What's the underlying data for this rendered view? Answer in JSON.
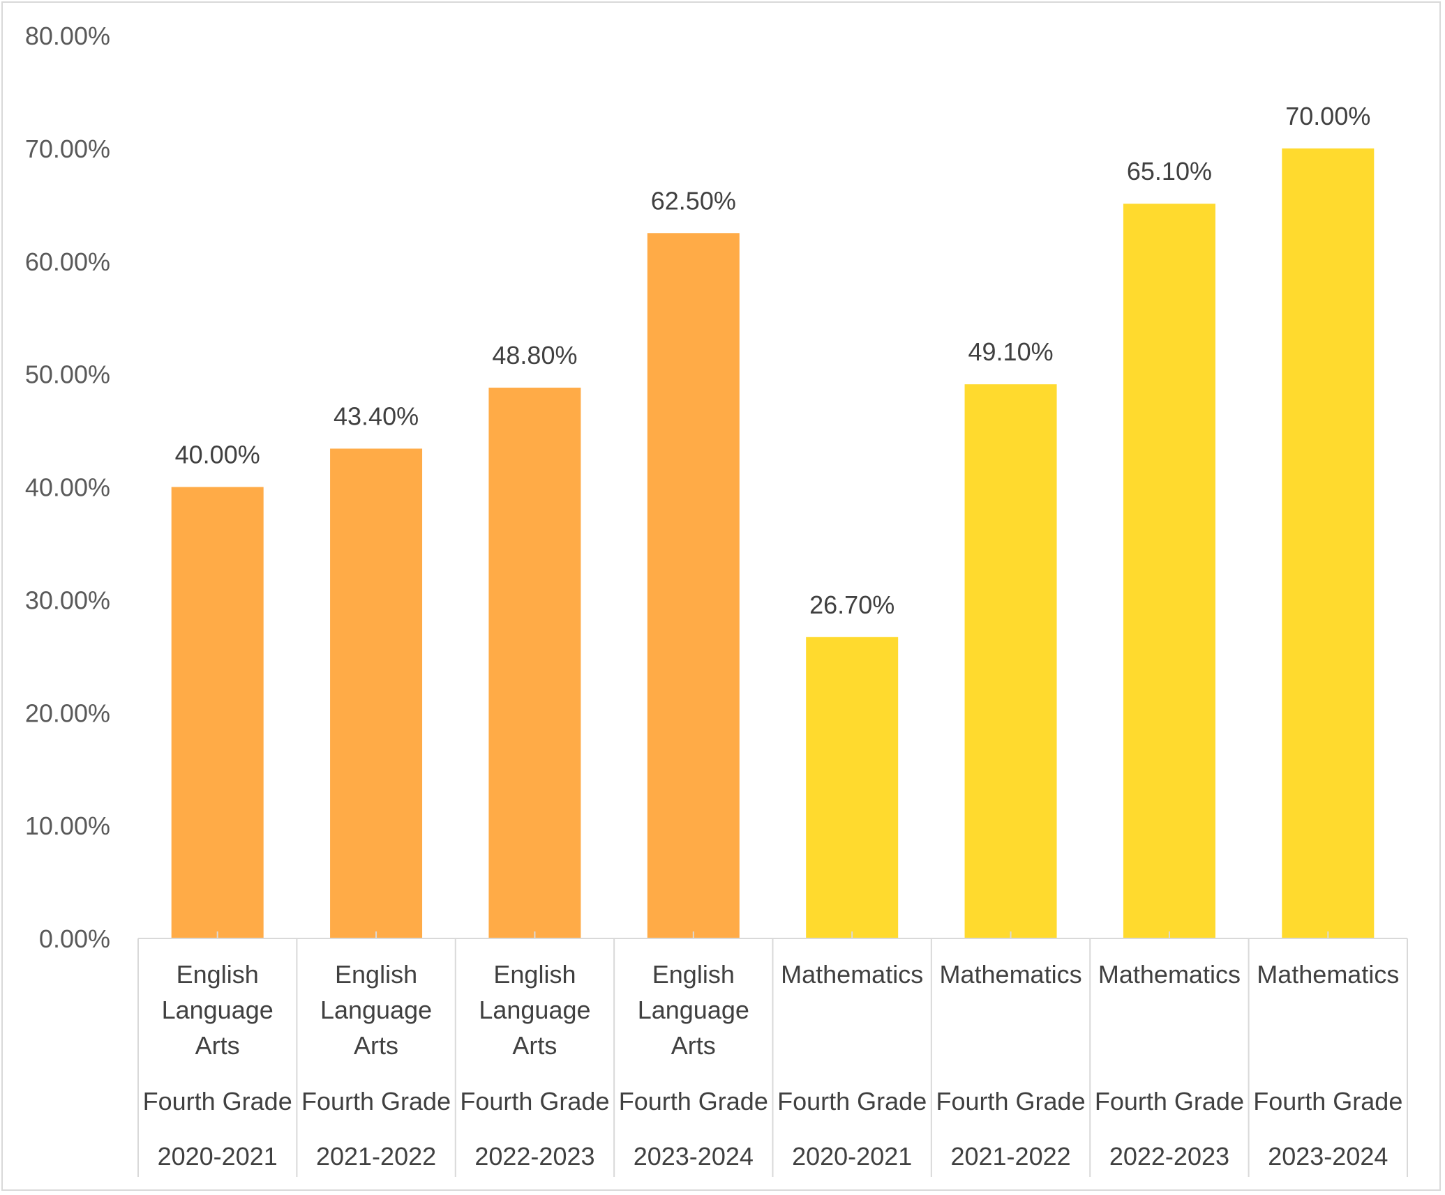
{
  "chart_data": {
    "type": "bar",
    "title": "",
    "xlabel": "",
    "ylabel": "",
    "ylim": [
      0,
      0.8
    ],
    "yticks": [
      "0.00%",
      "10.00%",
      "20.00%",
      "30.00%",
      "40.00%",
      "50.00%",
      "60.00%",
      "70.00%",
      "80.00%"
    ],
    "grid": false,
    "legend": "none",
    "categories": [
      {
        "subject": [
          "English",
          "Language",
          "Arts"
        ],
        "grade": "Fourth Grade",
        "year": "2020-2021"
      },
      {
        "subject": [
          "English",
          "Language",
          "Arts"
        ],
        "grade": "Fourth Grade",
        "year": "2021-2022"
      },
      {
        "subject": [
          "English",
          "Language",
          "Arts"
        ],
        "grade": "Fourth Grade",
        "year": "2022-2023"
      },
      {
        "subject": [
          "English",
          "Language",
          "Arts"
        ],
        "grade": "Fourth Grade",
        "year": "2023-2024"
      },
      {
        "subject": [
          "Mathematics"
        ],
        "grade": "Fourth Grade",
        "year": "2020-2021"
      },
      {
        "subject": [
          "Mathematics"
        ],
        "grade": "Fourth Grade",
        "year": "2021-2022"
      },
      {
        "subject": [
          "Mathematics"
        ],
        "grade": "Fourth Grade",
        "year": "2022-2023"
      },
      {
        "subject": [
          "Mathematics"
        ],
        "grade": "Fourth Grade",
        "year": "2023-2024"
      }
    ],
    "values": [
      0.4,
      0.434,
      0.488,
      0.625,
      0.267,
      0.491,
      0.651,
      0.7
    ],
    "data_labels": [
      "40.00%",
      "43.40%",
      "48.80%",
      "62.50%",
      "26.70%",
      "49.10%",
      "65.10%",
      "70.00%"
    ],
    "colors": [
      "#FFAB47",
      "#FFAB47",
      "#FFAB47",
      "#FFAB47",
      "#FFDA2E",
      "#FFDA2E",
      "#FFDA2E",
      "#FFDA2E"
    ],
    "axis_color": "#d9d9d9"
  }
}
